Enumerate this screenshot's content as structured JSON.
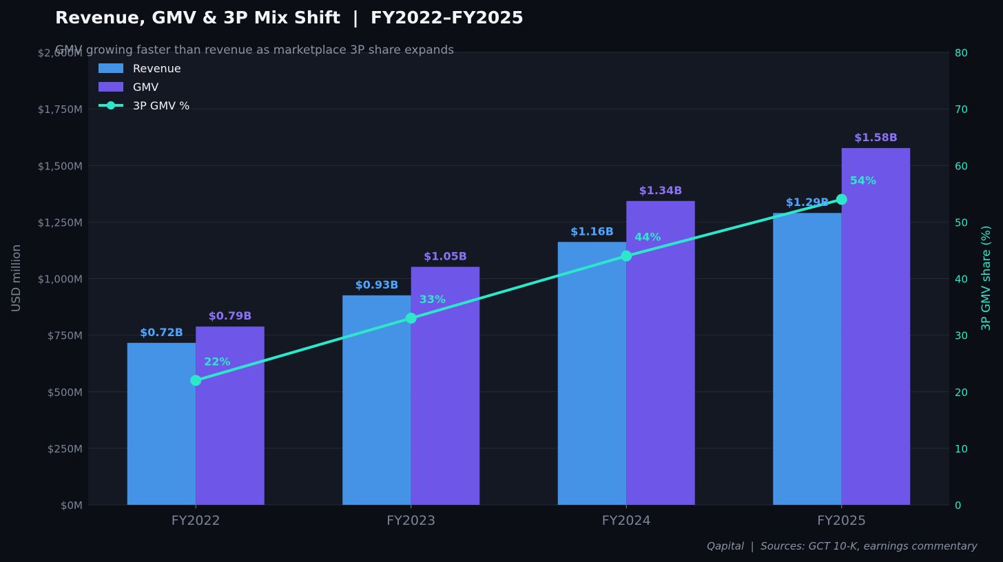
{
  "colors": {
    "background": "#0b0e14",
    "plot_background": "#131822",
    "grid": "#232b38",
    "revenue": "#4493e6",
    "revenue_label": "#4da6ff",
    "gmv": "#6e57e8",
    "gmv_label": "#8a72f5",
    "line": "#2ee6c9",
    "line_label": "#2ee6c9",
    "axis_text": "#7c8596",
    "title": "#f2f4f8",
    "subtitle": "#8a93a4",
    "footer": "#8a93a4",
    "legend_text": "#f2f4f8"
  },
  "chart_data": {
    "type": "bar",
    "title": "Revenue, GMV & 3P Mix Shift  |  FY2022–FY2025",
    "subtitle": "GMV growing faster than revenue as marketplace 3P share expands",
    "footer": "Qapital  |  Sources: GCT 10-K, earnings commentary",
    "categories": [
      "FY2022",
      "FY2023",
      "FY2024",
      "FY2025"
    ],
    "ylabel": "USD million",
    "ylim": [
      0,
      2000
    ],
    "yticks": [
      0,
      250,
      500,
      750,
      1000,
      1250,
      1500,
      1750,
      2000
    ],
    "ytick_labels": [
      "$0M",
      "$250M",
      "$500M",
      "$750M",
      "$1,000M",
      "$1,250M",
      "$1,500M",
      "$1,750M",
      "$2,000M"
    ],
    "y2label": "3P GMV share (%)",
    "y2lim": [
      0,
      80
    ],
    "y2ticks": [
      0,
      10,
      20,
      30,
      40,
      50,
      60,
      70,
      80
    ],
    "y2tick_labels": [
      "0",
      "10",
      "20",
      "30",
      "40",
      "50",
      "60",
      "70",
      "80"
    ],
    "grid": true,
    "legend_position": "top-left",
    "series": [
      {
        "name": "Revenue",
        "kind": "bar",
        "axis": "left",
        "values": [
          716,
          926,
          1162,
          1290
        ],
        "labels": [
          "$0.72B",
          "$0.93B",
          "$1.16B",
          "$1.29B"
        ]
      },
      {
        "name": "GMV",
        "kind": "bar",
        "axis": "left",
        "values": [
          788,
          1052,
          1343,
          1577
        ],
        "labels": [
          "$0.79B",
          "$1.05B",
          "$1.34B",
          "$1.58B"
        ]
      },
      {
        "name": "3P GMV %",
        "kind": "line",
        "axis": "right",
        "values": [
          22,
          33,
          44,
          54
        ],
        "labels": [
          "22%",
          "33%",
          "44%",
          "54%"
        ]
      }
    ]
  }
}
